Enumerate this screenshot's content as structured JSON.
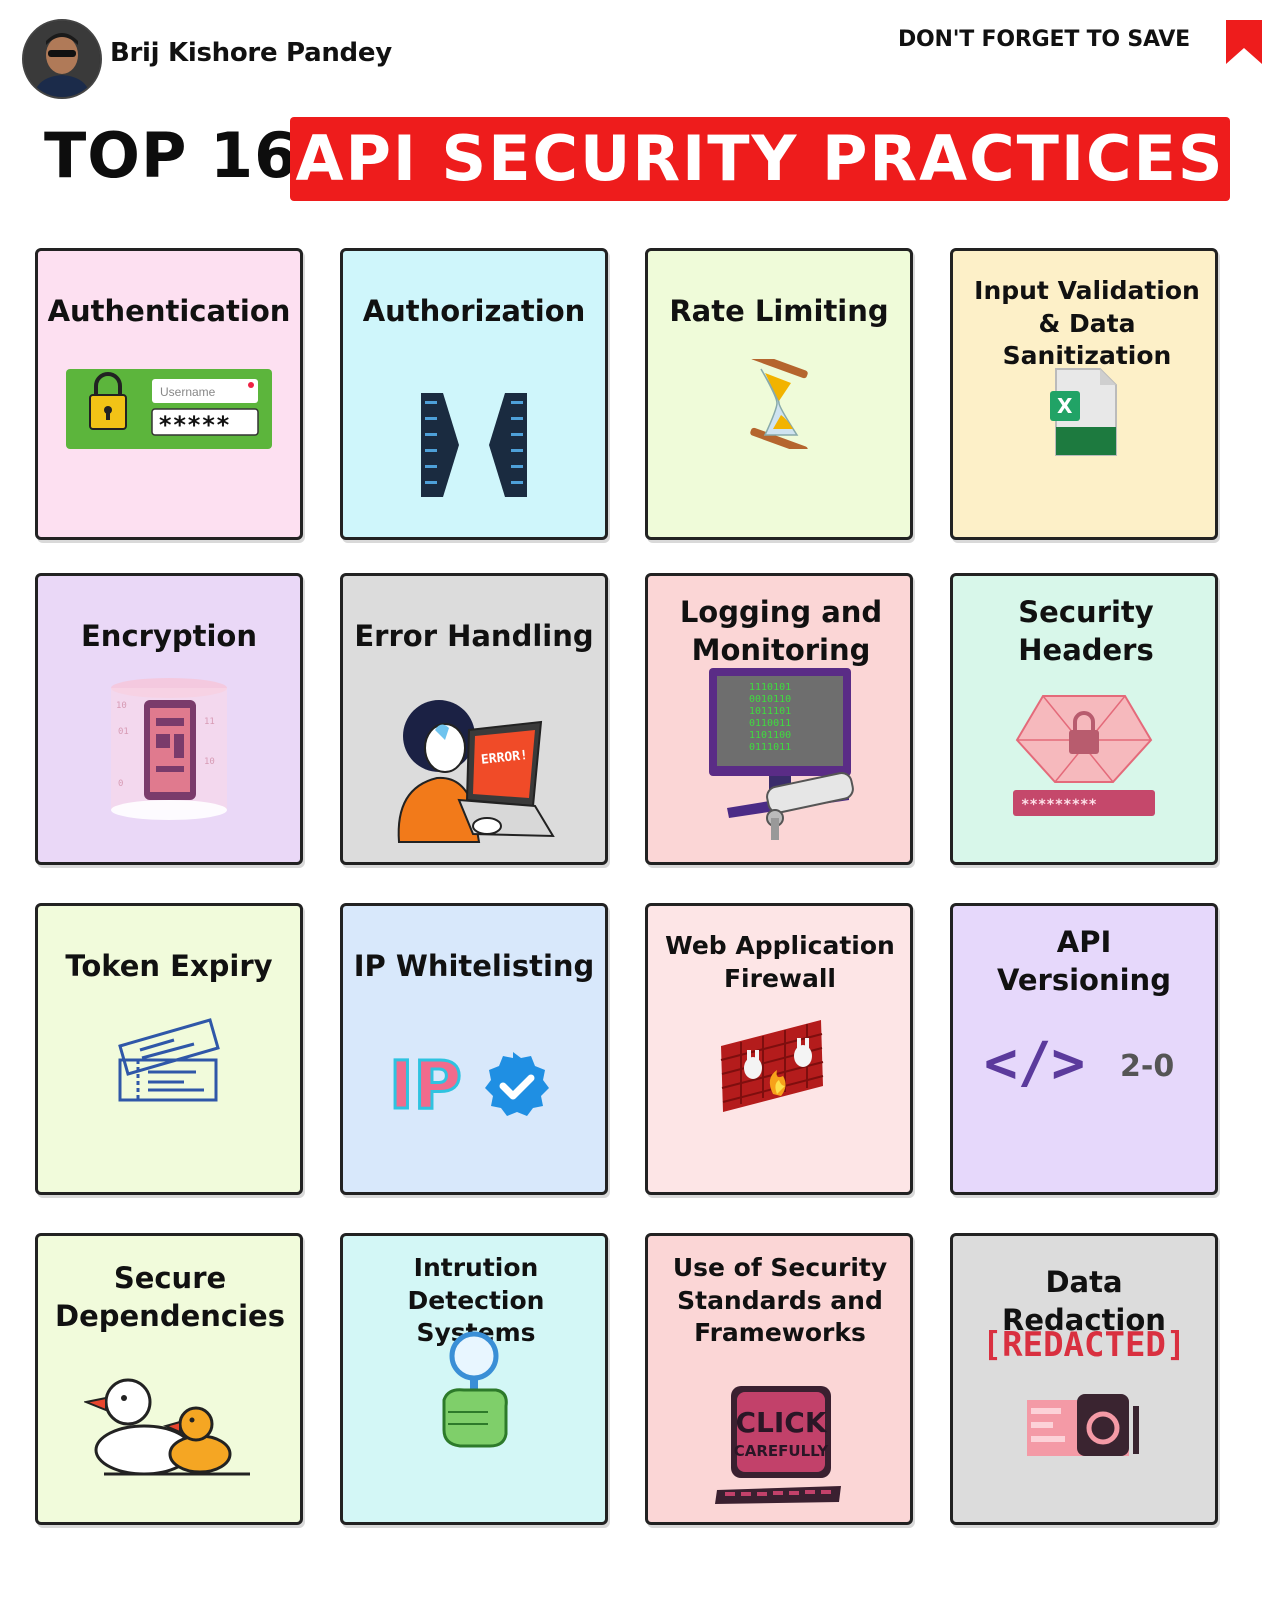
{
  "header": {
    "author": "Brij Kishore Pandey",
    "save_text": "DON'T FORGET TO SAVE"
  },
  "title": {
    "prefix": "TOP 16",
    "highlight": "API SECURITY PRACTICES"
  },
  "colors": {
    "accent_red": "#ee1c1c"
  },
  "cards": [
    {
      "label": "Authentication",
      "bg": "#fde0f1",
      "icon": "login-form-icon",
      "username_placeholder": "Username",
      "password_mask": "*****"
    },
    {
      "label": "Authorization",
      "bg": "#cff6fb",
      "icon": "server-racks-icon"
    },
    {
      "label": "Rate Limiting",
      "bg": "#effbd9",
      "icon": "hourglass-icon"
    },
    {
      "label": "Input Validation & Data Sanitization",
      "bg": "#fdf0c8",
      "icon": "excel-file-icon",
      "file_letter": "X"
    },
    {
      "label": "Encryption",
      "bg": "#ead8f7",
      "icon": "encrypted-phone-icon"
    },
    {
      "label": "Error Handling",
      "bg": "#dcdcdc",
      "icon": "developer-error-icon",
      "screen_text": "ERROR!"
    },
    {
      "label": "Logging and Monitoring",
      "bg": "#fbd6d6",
      "icon": "monitor-camera-icon"
    },
    {
      "label": "Security Headers",
      "bg": "#d8f7ea",
      "icon": "shield-password-icon",
      "password_mask": "*********"
    },
    {
      "label": "Token Expiry",
      "bg": "#f1fbdb",
      "icon": "tickets-icon"
    },
    {
      "label": "IP Whitelisting",
      "bg": "#d8e8fb",
      "icon": "ip-verified-icon",
      "ip_text": "IP"
    },
    {
      "label": "Web Application Firewall",
      "bg": "#fde5e6",
      "icon": "firewall-icon"
    },
    {
      "label": "API Versioning",
      "bg": "#e6d8fb",
      "icon": "code-version-icon",
      "code_text": "</>",
      "version_text": "2-0"
    },
    {
      "label": "Secure Dependencies",
      "bg": "#f1fbdb",
      "icon": "ducks-icon"
    },
    {
      "label": "Intrution Detection Systems",
      "bg": "#d3f7f6",
      "icon": "magnifier-hand-icon"
    },
    {
      "label": "Use of Security Standards and Frameworks",
      "bg": "#fbd6d6",
      "icon": "click-carefully-icon",
      "sign_line1": "CLICK",
      "sign_line2": "CAREFULLY"
    },
    {
      "label": "Data Redaction",
      "bg": "#dcdcdc",
      "icon": "redacted-icon",
      "redacted_text": "[REDACTED]"
    }
  ]
}
